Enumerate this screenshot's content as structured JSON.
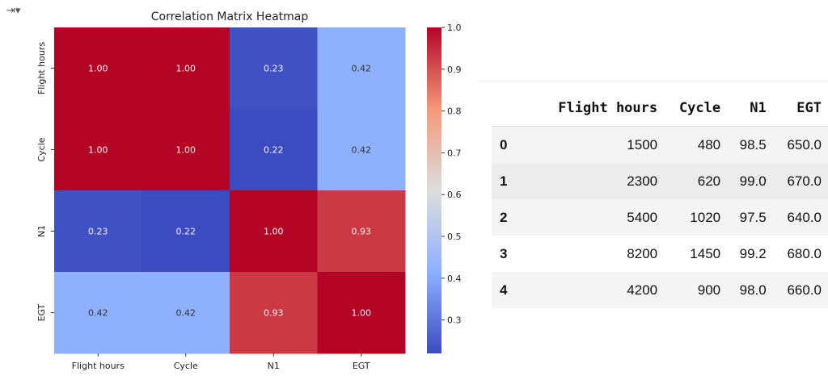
{
  "output_icon": "output-toggle-icon",
  "chart_data": {
    "type": "heatmap",
    "title": "Correlation Matrix Heatmap",
    "labels": [
      "Flight hours",
      "Cycle",
      "N1",
      "EGT"
    ],
    "values": [
      [
        1.0,
        1.0,
        0.23,
        0.42
      ],
      [
        1.0,
        1.0,
        0.22,
        0.42
      ],
      [
        0.23,
        0.22,
        1.0,
        0.93
      ],
      [
        0.42,
        0.42,
        0.93,
        1.0
      ]
    ],
    "value_labels": [
      [
        "1.00",
        "1.00",
        "0.23",
        "0.42"
      ],
      [
        "1.00",
        "1.00",
        "0.22",
        "0.42"
      ],
      [
        "0.23",
        "0.22",
        "1.00",
        "0.93"
      ],
      [
        "0.42",
        "0.42",
        "0.93",
        "1.00"
      ]
    ],
    "colormap": "coolwarm",
    "vmin": 0.22,
    "vmax": 1.0,
    "colorbar_ticks": [
      "0.3",
      "0.4",
      "0.5",
      "0.6",
      "0.7",
      "0.8",
      "0.9",
      "1.0"
    ]
  },
  "table": {
    "columns": [
      "Flight hours",
      "Cycle",
      "N1",
      "EGT"
    ],
    "rows": [
      {
        "index": "0",
        "cells": [
          "1500",
          "480",
          "98.5",
          "650.0"
        ]
      },
      {
        "index": "1",
        "cells": [
          "2300",
          "620",
          "99.0",
          "670.0"
        ]
      },
      {
        "index": "2",
        "cells": [
          "5400",
          "1020",
          "97.5",
          "640.0"
        ]
      },
      {
        "index": "3",
        "cells": [
          "8200",
          "1450",
          "99.2",
          "680.0"
        ]
      },
      {
        "index": "4",
        "cells": [
          "4200",
          "900",
          "98.0",
          "660.0"
        ]
      }
    ]
  }
}
